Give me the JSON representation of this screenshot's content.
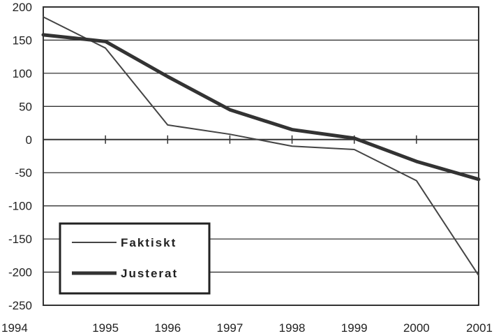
{
  "chart_data": {
    "type": "line",
    "title": "",
    "xlabel": "",
    "ylabel": "",
    "categories": [
      "1994",
      "1995",
      "1996",
      "1997",
      "1998",
      "1999",
      "2000",
      "2001"
    ],
    "yticks": [
      "200",
      "150",
      "100",
      "50",
      "0",
      "-50",
      "-100",
      "-150",
      "-200",
      "-250"
    ],
    "ylim": [
      -250,
      200
    ],
    "grid": "horizontal",
    "legend_position": "bottom-left",
    "series": [
      {
        "name": "Faktiskt",
        "values": [
          185,
          138,
          22,
          8,
          -10,
          -15,
          -62,
          -205
        ],
        "color": "#444444",
        "width": 2
      },
      {
        "name": "Justerat",
        "values": [
          158,
          148,
          95,
          45,
          15,
          2,
          -33,
          -60
        ],
        "color": "#333333",
        "width": 5
      }
    ]
  }
}
